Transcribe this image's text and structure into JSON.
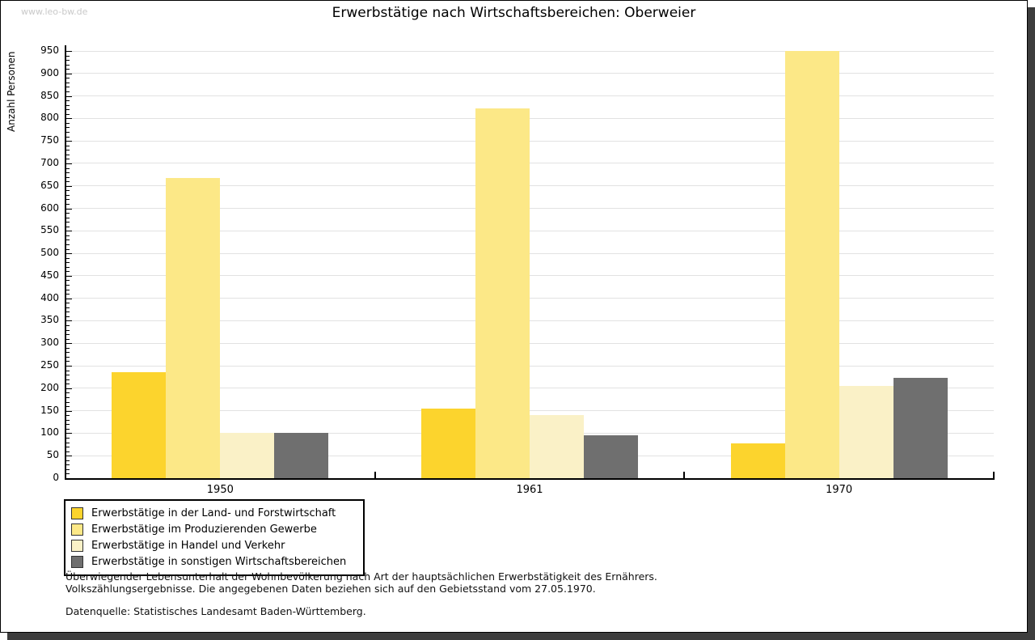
{
  "watermark": "www.leo-bw.de",
  "title": "Erwerbstätige nach Wirtschaftsbereichen: Oberweier",
  "chart_data": {
    "type": "bar",
    "title": "Erwerbstätige nach Wirtschaftsbereichen: Oberweier",
    "xlabel": "",
    "ylabel": "Anzahl Personen",
    "categories": [
      "1950",
      "1961",
      "1970"
    ],
    "series": [
      {
        "name": "Erwerbstätige in der Land- und Forstwirtschaft",
        "color": "#FCD42D",
        "values": [
          235,
          155,
          77
        ]
      },
      {
        "name": "Erwerbstätige im Produzierenden Gewerbe",
        "color": "#FCE887",
        "values": [
          667,
          822,
          950
        ]
      },
      {
        "name": "Erwerbstätige in Handel und Verkehr",
        "color": "#FAF1C7",
        "values": [
          100,
          140,
          205
        ]
      },
      {
        "name": "Erwerbstätige in sonstigen Wirtschaftsbereichen",
        "color": "#6F6F6F",
        "values": [
          100,
          95,
          223
        ]
      }
    ],
    "ylim": [
      0,
      950
    ],
    "ytick_step": 50,
    "yminor_tick_step": 10,
    "grid": true,
    "legend_position": "bottom-left"
  },
  "footnotes": {
    "line1": "Überwiegender Lebensunterhalt der Wohnbevölkerung nach Art der hauptsächlichen Erwerbstätigkeit des Ernährers.",
    "line2": "Volkszählungsergebnisse. Die angegebenen Daten beziehen sich auf den Gebietsstand vom 27.05.1970.",
    "source": "Datenquelle: Statistisches Landesamt Baden-Württemberg."
  },
  "colors": {
    "grid": "#e2e2e2",
    "axis": "#000000",
    "watermark": "#c9c9c9",
    "shadow": "#3d3d3d"
  }
}
